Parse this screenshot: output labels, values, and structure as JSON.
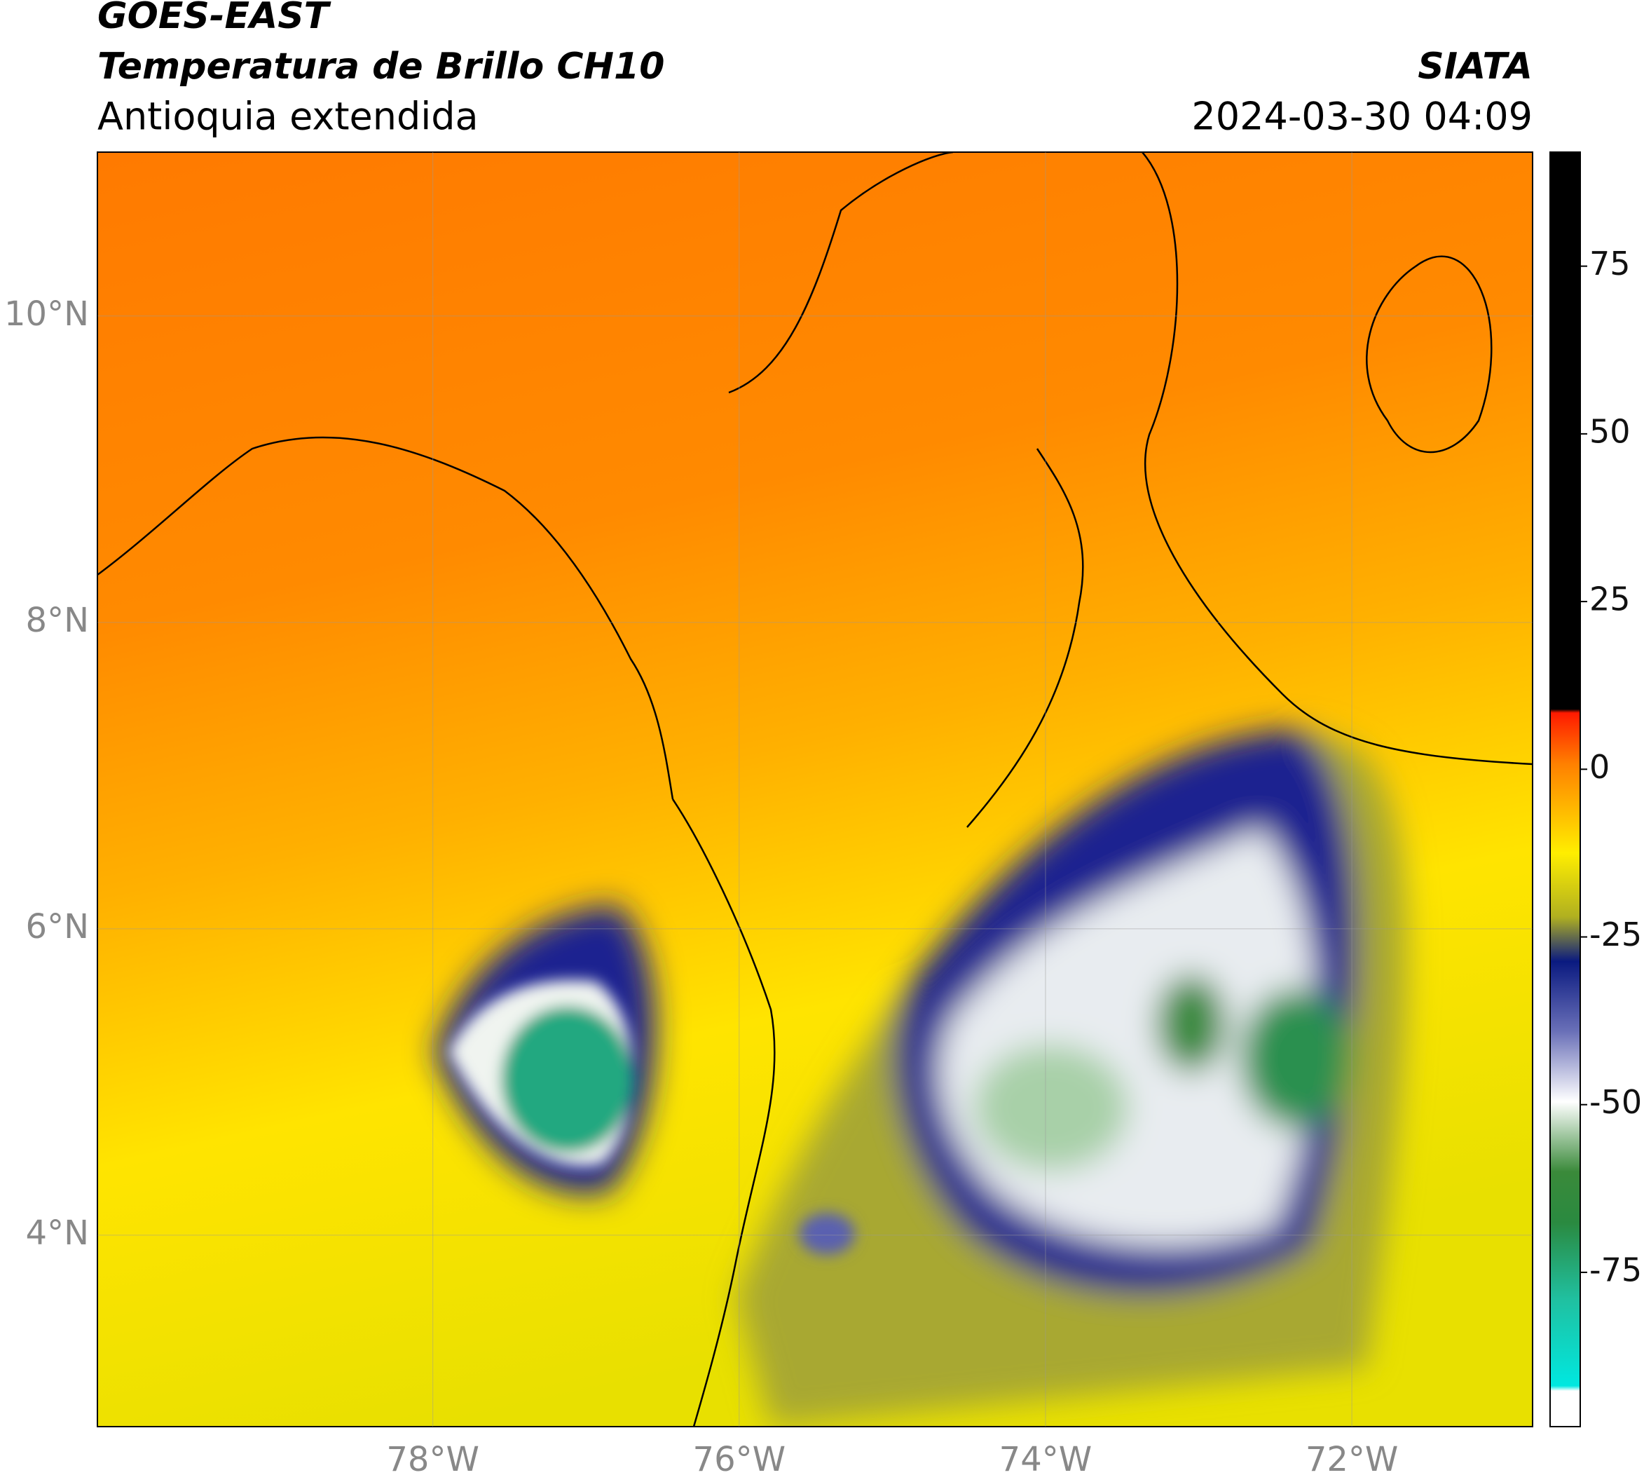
{
  "header": {
    "line1": "GOES-EAST",
    "line2": "Temperatura de Brillo CH10",
    "subtitle": "Antioquia extendida",
    "org": "SIATA",
    "datetime": "2024-03-30 04:09"
  },
  "map": {
    "xlim": [
      -80.19,
      -70.82
    ],
    "ylim": [
      2.75,
      11.07
    ],
    "xticks": [
      {
        "value": -78,
        "label": "78°W"
      },
      {
        "value": -76,
        "label": "76°W"
      },
      {
        "value": -74,
        "label": "74°W"
      },
      {
        "value": -72,
        "label": "72°W"
      }
    ],
    "yticks": [
      {
        "value": 4,
        "label": "4°N"
      },
      {
        "value": 6,
        "label": "6°N"
      },
      {
        "value": 8,
        "label": "8°N"
      },
      {
        "value": 10,
        "label": "10°N"
      }
    ],
    "grid": true
  },
  "colorbar": {
    "clim": [
      -98,
      92
    ],
    "ticks": [
      75,
      50,
      25,
      0,
      -25,
      -50,
      -75
    ]
  }
}
